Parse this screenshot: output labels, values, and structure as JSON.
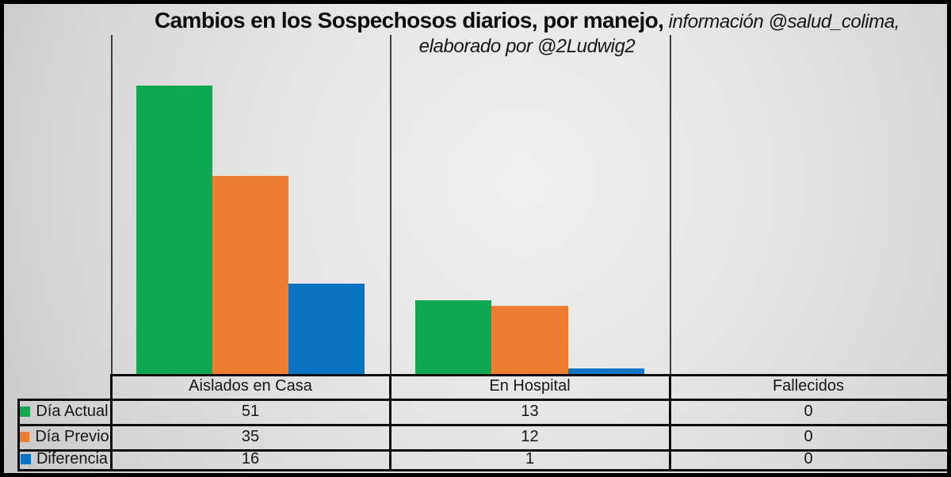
{
  "title": {
    "main": "Cambios en los Sospechosos diarios, por manejo,",
    "credit": " información @salud_colima,",
    "credit_line2": "elaborado por @2Ludwig2"
  },
  "chart_data": {
    "type": "bar",
    "title": "Cambios en los Sospechosos diarios, por manejo, información @salud_colima, elaborado por @2Ludwig2",
    "categories": [
      "Aislados en Casa",
      "En Hospital",
      "Fallecidos"
    ],
    "series": [
      {
        "name": "Día Actual",
        "color": "#0DA84F",
        "values": [
          51,
          13,
          0
        ]
      },
      {
        "name": "Día Previo",
        "color": "#ED7D31",
        "values": [
          35,
          12,
          0
        ]
      },
      {
        "name": "Diferencia",
        "color": "#0A74C4",
        "values": [
          16,
          1,
          0
        ]
      }
    ],
    "xlabel": "",
    "ylabel": "",
    "ylim": [
      0,
      60
    ],
    "grid": false,
    "legend_position": "data-table-left",
    "data_table": true
  },
  "colors": {
    "series_green": "#0DA84F",
    "series_orange": "#ED7D31",
    "series_blue": "#0A74C4",
    "table_line": "#0c0c0c",
    "plot_line": "#3e3e3e",
    "background_light": "#f0f0f0",
    "background_dark": "#c7c7c7"
  }
}
